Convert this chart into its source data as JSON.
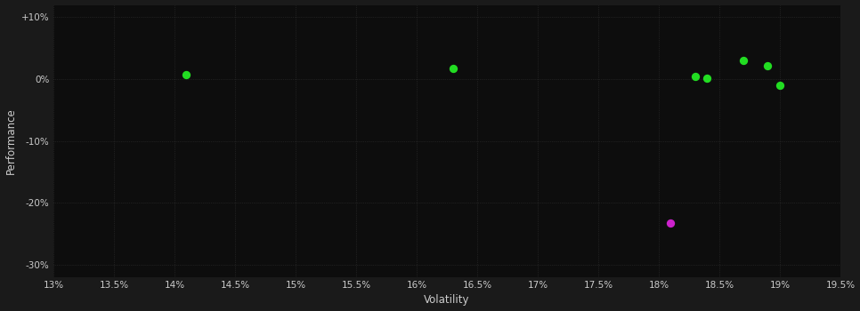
{
  "background_color": "#1a1a1a",
  "plot_bg_color": "#0d0d0d",
  "grid_color": "#3a3a3a",
  "xlabel": "Volatility",
  "ylabel": "Performance",
  "xlim": [
    0.13,
    0.195
  ],
  "ylim": [
    -0.32,
    0.12
  ],
  "xticks": [
    0.13,
    0.135,
    0.14,
    0.145,
    0.15,
    0.155,
    0.16,
    0.165,
    0.17,
    0.175,
    0.18,
    0.185,
    0.19,
    0.195
  ],
  "yticks": [
    0.1,
    0.0,
    -0.1,
    -0.2,
    -0.3
  ],
  "ytick_labels": [
    "+10%",
    "0%",
    "-10%",
    "-20%",
    "-30%"
  ],
  "points_green": [
    [
      0.141,
      0.007
    ],
    [
      0.163,
      0.018
    ],
    [
      0.183,
      0.005
    ],
    [
      0.184,
      0.002
    ],
    [
      0.187,
      0.03
    ],
    [
      0.189,
      0.022
    ],
    [
      0.19,
      -0.01
    ]
  ],
  "points_magenta": [
    [
      0.181,
      -0.233
    ]
  ],
  "marker_size": 45,
  "green_color": "#22dd22",
  "magenta_color": "#cc22cc",
  "text_color": "#cccccc",
  "tick_fontsize": 7.5,
  "label_fontsize": 8.5
}
